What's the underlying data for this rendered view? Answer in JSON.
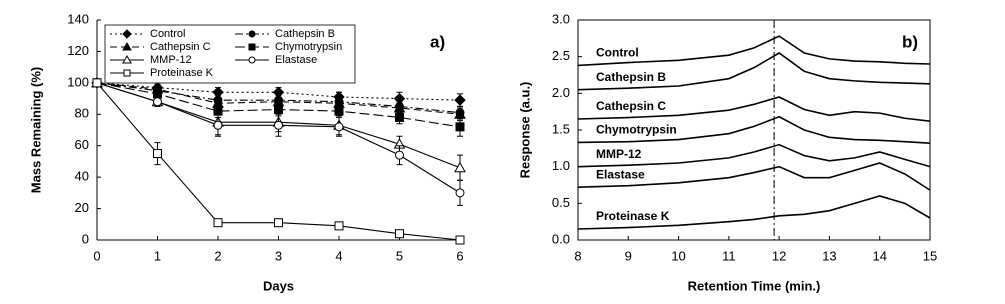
{
  "chart_data": [
    {
      "type": "line",
      "annotation": "a)",
      "xlabel": "Days",
      "ylabel": "Mass Remaining (%)",
      "x": [
        0,
        1,
        2,
        3,
        4,
        5,
        6
      ],
      "xlim": [
        0,
        6
      ],
      "xticks": [
        0,
        1,
        2,
        3,
        4,
        5,
        6
      ],
      "ylim": [
        0,
        140
      ],
      "yticks": [
        0,
        20,
        40,
        60,
        80,
        100,
        120,
        140
      ],
      "legend": "upper left",
      "series": [
        {
          "name": "Control",
          "color": "#000000",
          "dash": "dot",
          "marker": "diamond",
          "filled": true,
          "values": [
            100,
            97,
            94,
            94,
            91,
            90,
            89
          ],
          "errors": [
            1,
            2,
            3,
            3,
            3,
            4,
            4
          ]
        },
        {
          "name": "Cathepsin B",
          "color": "#000000",
          "dash": "dashdot",
          "marker": "circle",
          "filled": true,
          "values": [
            100,
            95,
            89,
            89,
            88,
            85,
            81
          ],
          "errors": [
            1,
            2,
            3,
            3,
            3,
            3,
            4
          ]
        },
        {
          "name": "Cathepsin C",
          "color": "#000000",
          "dash": "dash",
          "marker": "triangle",
          "filled": true,
          "values": [
            100,
            96,
            87,
            88,
            87,
            84,
            80
          ],
          "errors": [
            1,
            2,
            3,
            3,
            3,
            3,
            4
          ]
        },
        {
          "name": "Chymotrypsin",
          "color": "#000000",
          "dash": "longdash",
          "marker": "square",
          "filled": true,
          "values": [
            100,
            93,
            82,
            83,
            82,
            78,
            72
          ],
          "errors": [
            1,
            3,
            4,
            4,
            12,
            4,
            6
          ]
        },
        {
          "name": "MMP-12",
          "color": "#000000",
          "dash": "solid",
          "marker": "triangle",
          "filled": false,
          "values": [
            100,
            88,
            75,
            75,
            73,
            61,
            46
          ],
          "errors": [
            1,
            3,
            8,
            6,
            6,
            5,
            8
          ]
        },
        {
          "name": "Elastase",
          "color": "#000000",
          "dash": "solid",
          "marker": "circle",
          "filled": false,
          "values": [
            100,
            88,
            73,
            73,
            72,
            54,
            30
          ],
          "errors": [
            1,
            3,
            7,
            7,
            6,
            6,
            8
          ]
        },
        {
          "name": "Proteinase K",
          "color": "#000000",
          "dash": "solid",
          "marker": "square",
          "filled": false,
          "values": [
            100,
            55,
            11,
            11,
            9,
            4,
            0
          ],
          "errors": [
            1,
            7,
            1,
            1,
            1,
            1,
            1
          ]
        }
      ]
    },
    {
      "type": "line",
      "annotation": "b)",
      "xlabel": "Retention Time (min.)",
      "ylabel": "Response (a.u.)",
      "x": [
        8,
        9,
        10,
        11,
        11.5,
        12,
        12.5,
        13,
        13.5,
        14,
        14.5,
        15
      ],
      "xlim": [
        8,
        15
      ],
      "xticks": [
        8,
        9,
        10,
        11,
        12,
        13,
        14,
        15
      ],
      "ylim": [
        0,
        3
      ],
      "yticks": [
        {
          "value": 0,
          "label": "0.0"
        },
        {
          "value": 0.5,
          "label": "0.5"
        },
        {
          "value": 1,
          "label": "1.0"
        },
        {
          "value": 1.5,
          "label": "1.5"
        },
        {
          "value": 2,
          "label": "2.0"
        },
        {
          "value": 2.5,
          "label": "2.5"
        },
        {
          "value": 3,
          "label": "3.0"
        }
      ],
      "vline": 11.9,
      "series": [
        {
          "name": "Control",
          "color": "#000000",
          "values": [
            2.38,
            2.42,
            2.45,
            2.52,
            2.62,
            2.78,
            2.55,
            2.47,
            2.44,
            2.43,
            2.41,
            2.4
          ]
        },
        {
          "name": "Cathepsin B",
          "color": "#000000",
          "values": [
            2.05,
            2.07,
            2.1,
            2.2,
            2.35,
            2.55,
            2.3,
            2.2,
            2.17,
            2.15,
            2.14,
            2.13
          ]
        },
        {
          "name": "Cathepsin C",
          "color": "#000000",
          "values": [
            1.65,
            1.67,
            1.7,
            1.77,
            1.85,
            1.95,
            1.78,
            1.7,
            1.75,
            1.73,
            1.66,
            1.62
          ]
        },
        {
          "name": "Chymotrypsin",
          "color": "#000000",
          "values": [
            1.33,
            1.34,
            1.37,
            1.45,
            1.55,
            1.68,
            1.5,
            1.4,
            1.37,
            1.36,
            1.34,
            1.32
          ]
        },
        {
          "name": "MMP-12",
          "color": "#000000",
          "values": [
            1.0,
            1.02,
            1.05,
            1.12,
            1.2,
            1.3,
            1.15,
            1.08,
            1.12,
            1.2,
            1.1,
            1.0
          ]
        },
        {
          "name": "Elastase",
          "color": "#000000",
          "values": [
            0.72,
            0.74,
            0.78,
            0.85,
            0.92,
            1.0,
            0.85,
            0.85,
            0.95,
            1.05,
            0.9,
            0.68
          ]
        },
        {
          "name": "Proteinase K",
          "color": "#000000",
          "values": [
            0.15,
            0.17,
            0.2,
            0.25,
            0.28,
            0.33,
            0.35,
            0.4,
            0.5,
            0.6,
            0.5,
            0.3
          ]
        }
      ]
    }
  ]
}
